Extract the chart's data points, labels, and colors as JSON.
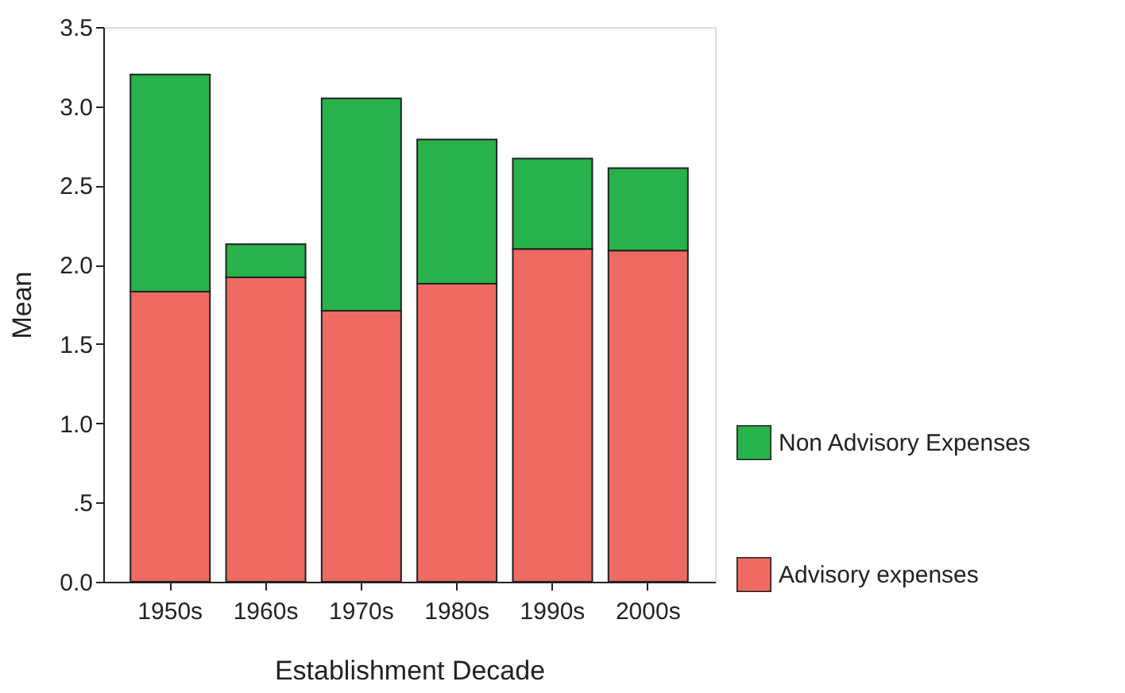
{
  "chart_data": {
    "type": "bar",
    "stacked": true,
    "xlabel": "Establishment Decade",
    "ylabel": "Mean",
    "categories": [
      "1950s",
      "1960s",
      "1970s",
      "1980s",
      "1990s",
      "2000s"
    ],
    "series": [
      {
        "name": "Advisory expenses",
        "color": "#ee6a63",
        "values": [
          1.83,
          1.92,
          1.71,
          1.88,
          2.1,
          2.09
        ]
      },
      {
        "name": "Non Advisory Expenses",
        "color": "#27b24b",
        "values": [
          1.37,
          0.21,
          1.34,
          0.91,
          0.57,
          0.52
        ]
      }
    ],
    "ylim": [
      0,
      3.5
    ],
    "yticks": [
      {
        "value": 0,
        "label": "0.0"
      },
      {
        "value": 0.5,
        "label": ".5"
      },
      {
        "value": 1,
        "label": "1.0"
      },
      {
        "value": 1.5,
        "label": "1.5"
      },
      {
        "value": 2,
        "label": "2.0"
      },
      {
        "value": 2.5,
        "label": "2.5"
      },
      {
        "value": 3,
        "label": "3.0"
      },
      {
        "value": 3.5,
        "label": "3.5"
      }
    ],
    "grid": false,
    "legend": "right"
  }
}
